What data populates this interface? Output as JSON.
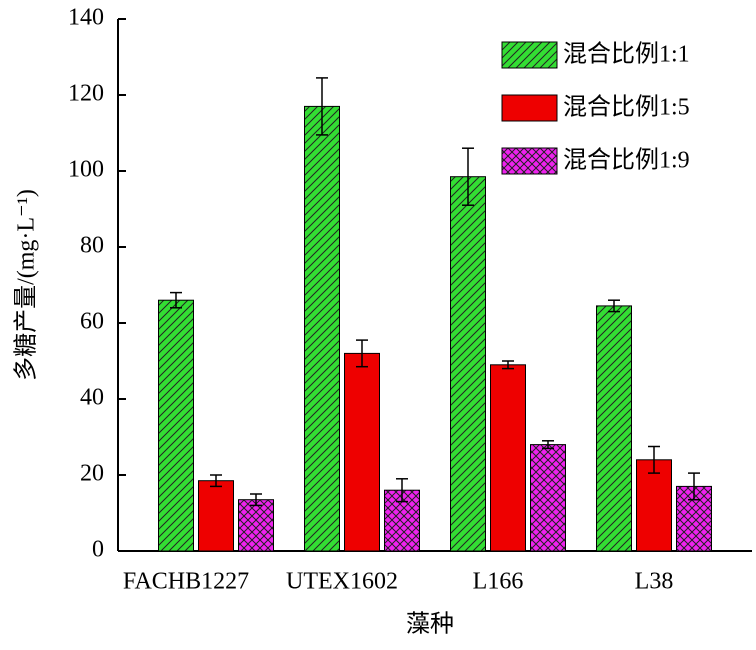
{
  "chart_data": {
    "type": "bar",
    "xlabel": "藻种",
    "ylabel": "多糖产量/(mg·L⁻¹)",
    "categories": [
      "FACHB1227",
      "UTEX1602",
      "L166",
      "L38"
    ],
    "series": [
      {
        "name": "混合比例1:1",
        "color": "#33dd33",
        "hatch": "diagonal",
        "values": [
          66,
          117,
          98.5,
          64.5
        ],
        "errors": [
          2,
          7.5,
          7.5,
          1.5
        ]
      },
      {
        "name": "混合比例1:5",
        "color": "#ee0000",
        "hatch": "none",
        "values": [
          18.5,
          52,
          49,
          24
        ],
        "errors": [
          1.5,
          3.5,
          1,
          3.5
        ]
      },
      {
        "name": "混合比例1:9",
        "color": "#ee22ee",
        "hatch": "crosshatch",
        "values": [
          13.5,
          16,
          28,
          17
        ],
        "errors": [
          1.5,
          3,
          1,
          3.5
        ]
      }
    ],
    "ylim": [
      0,
      140
    ],
    "yticks": [
      0,
      20,
      40,
      60,
      80,
      100,
      120,
      140
    ],
    "grid": false,
    "legend": "upper right"
  }
}
